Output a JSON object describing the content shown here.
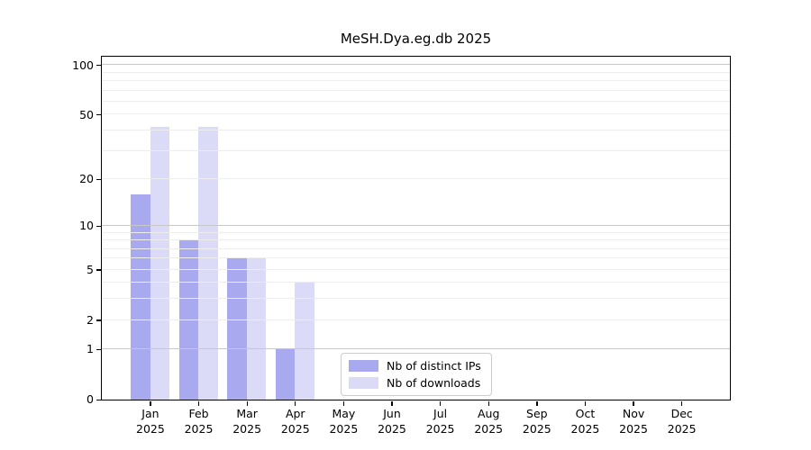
{
  "title": "MeSH.Dya.eg.db 2025",
  "chart_data": {
    "type": "bar",
    "title": "MeSH.Dya.eg.db 2025",
    "year_label": "2025",
    "categories": [
      "Jan",
      "Feb",
      "Mar",
      "Apr",
      "May",
      "Jun",
      "Jul",
      "Aug",
      "Sep",
      "Oct",
      "Nov",
      "Dec"
    ],
    "series": [
      {
        "name": "Nb of distinct IPs",
        "color": "#a9a9ef",
        "values": [
          16,
          8,
          6,
          1,
          0,
          0,
          0,
          0,
          0,
          0,
          0,
          0
        ]
      },
      {
        "name": "Nb of downloads",
        "color": "#dbdbf7",
        "values": [
          42,
          42,
          6,
          4,
          0,
          0,
          0,
          0,
          0,
          0,
          0,
          0
        ]
      }
    ],
    "y_scale": "log10(1+x)",
    "y_ticks": [
      0,
      1,
      2,
      5,
      10,
      20,
      50,
      100
    ],
    "gridlines": {
      "major": [
        1,
        10,
        100
      ],
      "minor": [
        2,
        3,
        4,
        5,
        6,
        7,
        8,
        9,
        20,
        30,
        40,
        50,
        60,
        70,
        80,
        90
      ]
    },
    "ylim": [
      0,
      112
    ],
    "grid": true,
    "legend_position": "bottom-center",
    "colors": {
      "major_grid": "#c8c8c8",
      "minor_grid": "#ededed",
      "spine": "#000000",
      "background": "#ffffff"
    }
  }
}
